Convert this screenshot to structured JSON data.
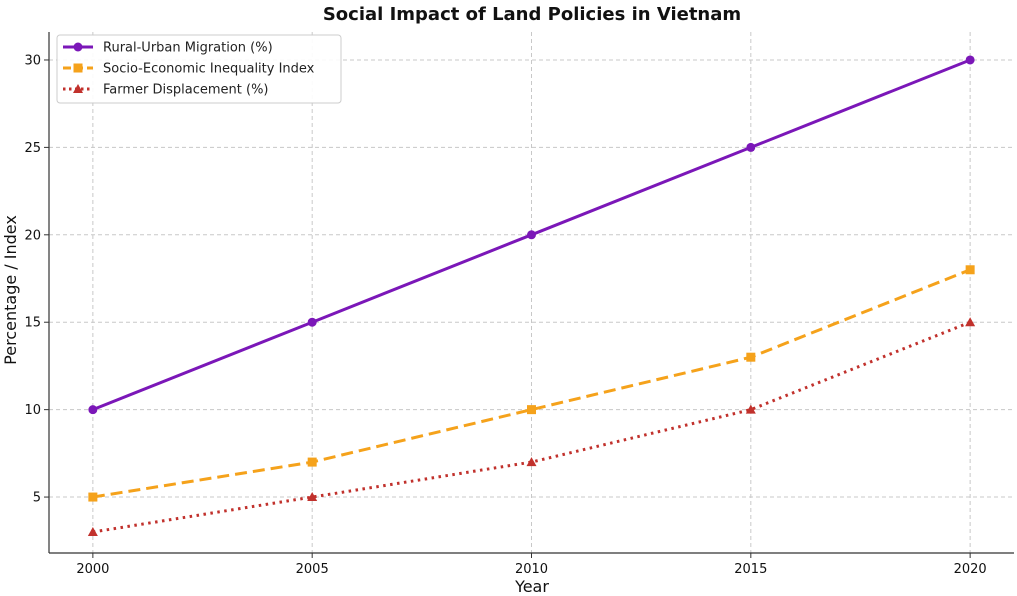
{
  "chart_data": {
    "type": "line",
    "title": "Social Impact of Land Policies in Vietnam",
    "xlabel": "Year",
    "ylabel": "Percentage / Index",
    "x": [
      2000,
      2005,
      2010,
      2015,
      2020
    ],
    "x_ticks": [
      "2000",
      "2005",
      "2010",
      "2015",
      "2020"
    ],
    "y_ticks": [
      "5",
      "10",
      "15",
      "20",
      "25",
      "30"
    ],
    "xlim": [
      1999,
      2021
    ],
    "ylim": [
      1.8,
      31.6
    ],
    "grid": true,
    "legend_position": "top-left",
    "series": [
      {
        "name": "Rural-Urban Migration (%)",
        "values": [
          10,
          15,
          20,
          25,
          30
        ],
        "color": "#7b17b8",
        "style": "solid",
        "marker": "circle"
      },
      {
        "name": "Socio-Economic Inequality Index",
        "values": [
          5,
          7,
          10,
          13,
          18
        ],
        "color": "#f5a21b",
        "style": "dashed",
        "marker": "square"
      },
      {
        "name": "Farmer Displacement (%)",
        "values": [
          3,
          5,
          7,
          10,
          15
        ],
        "color": "#c1312c",
        "style": "dotted",
        "marker": "triangle"
      }
    ]
  }
}
